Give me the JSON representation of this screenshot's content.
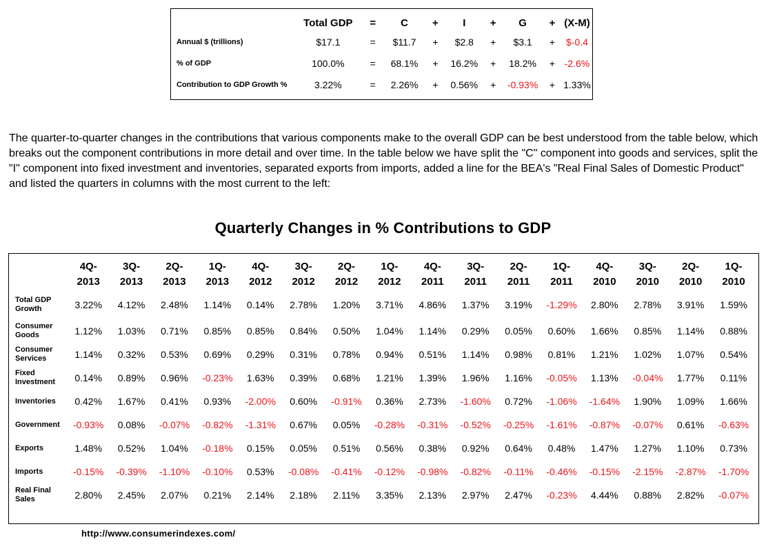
{
  "summary": {
    "header": [
      "",
      "Total GDP",
      "=",
      "C",
      "+",
      "I",
      "+",
      "G",
      "+",
      "(X-M)"
    ],
    "rows": [
      {
        "label": "Annual $ (trillions)",
        "cells": [
          "$17.1",
          "=",
          "$11.7",
          "+",
          "$2.8",
          "+",
          "$3.1",
          "+",
          "$-0.4"
        ]
      },
      {
        "label": "% of GDP",
        "cells": [
          "100.0%",
          "=",
          "68.1%",
          "+",
          "16.2%",
          "+",
          "18.2%",
          "+",
          "-2.6%"
        ]
      },
      {
        "label": "Contribution to GDP Growth %",
        "cells": [
          "3.22%",
          "=",
          "2.26%",
          "+",
          "0.56%",
          "+",
          "-0.93%",
          "+",
          "1.33%"
        ]
      }
    ]
  },
  "intro": "The quarter-to-quarter changes in the contributions that various components make to the overall GDP can be best understood from the table below, which breaks out the component contributions in more detail and over time. In the table below we have split the \"C\" component into goods and services, split the \"I\" component into fixed investment and inventories, separated exports from imports, added a line for the BEA's \"Real Final Sales of Domestic Product\" and listed the quarters in columns with the most current to the left:",
  "quarterly": {
    "title": "Quarterly Changes in % Contributions to GDP",
    "columns": [
      [
        "4Q-",
        "2013"
      ],
      [
        "3Q-",
        "2013"
      ],
      [
        "2Q-",
        "2013"
      ],
      [
        "1Q-",
        "2013"
      ],
      [
        "4Q-",
        "2012"
      ],
      [
        "3Q-",
        "2012"
      ],
      [
        "2Q-",
        "2012"
      ],
      [
        "1Q-",
        "2012"
      ],
      [
        "4Q-",
        "2011"
      ],
      [
        "3Q-",
        "2011"
      ],
      [
        "2Q-",
        "2011"
      ],
      [
        "1Q-",
        "2011"
      ],
      [
        "4Q-",
        "2010"
      ],
      [
        "3Q-",
        "2010"
      ],
      [
        "2Q-",
        "2010"
      ],
      [
        "1Q-",
        "2010"
      ]
    ],
    "rows": [
      {
        "label": [
          "Total GDP",
          "Growth"
        ],
        "values": [
          "3.22%",
          "4.12%",
          "2.48%",
          "1.14%",
          "0.14%",
          "2.78%",
          "1.20%",
          "3.71%",
          "4.86%",
          "1.37%",
          "3.19%",
          "-1.29%",
          "2.80%",
          "2.78%",
          "3.91%",
          "1.59%"
        ]
      },
      {
        "label": [
          "Consumer",
          "Goods"
        ],
        "values": [
          "1.12%",
          "1.03%",
          "0.71%",
          "0.85%",
          "0.85%",
          "0.84%",
          "0.50%",
          "1.04%",
          "1.14%",
          "0.29%",
          "0.05%",
          "0.60%",
          "1.66%",
          "0.85%",
          "1.14%",
          "0.88%"
        ]
      },
      {
        "label": [
          "Consumer",
          "Services"
        ],
        "values": [
          "1.14%",
          "0.32%",
          "0.53%",
          "0.69%",
          "0.29%",
          "0.31%",
          "0.78%",
          "0.94%",
          "0.51%",
          "1.14%",
          "0.98%",
          "0.81%",
          "1.21%",
          "1.02%",
          "1.07%",
          "0.54%"
        ]
      },
      {
        "label": [
          "Fixed",
          "Investment"
        ],
        "values": [
          "0.14%",
          "0.89%",
          "0.96%",
          "-0.23%",
          "1.63%",
          "0.39%",
          "0.68%",
          "1.21%",
          "1.39%",
          "1.96%",
          "1.16%",
          "-0.05%",
          "1.13%",
          "-0.04%",
          "1.77%",
          "0.11%"
        ]
      },
      {
        "label": [
          "Inventories"
        ],
        "values": [
          "0.42%",
          "1.67%",
          "0.41%",
          "0.93%",
          "-2.00%",
          "0.60%",
          "-0.91%",
          "0.36%",
          "2.73%",
          "-1.60%",
          "0.72%",
          "-1.06%",
          "-1.64%",
          "1.90%",
          "1.09%",
          "1.66%"
        ]
      },
      {
        "label": [
          "Government"
        ],
        "values": [
          "-0.93%",
          "0.08%",
          "-0.07%",
          "-0.82%",
          "-1.31%",
          "0.67%",
          "0.05%",
          "-0.28%",
          "-0.31%",
          "-0.52%",
          "-0.25%",
          "-1.61%",
          "-0.87%",
          "-0.07%",
          "0.61%",
          "-0.63%"
        ]
      },
      {
        "label": [
          "Exports"
        ],
        "values": [
          "1.48%",
          "0.52%",
          "1.04%",
          "-0.18%",
          "0.15%",
          "0.05%",
          "0.51%",
          "0.56%",
          "0.38%",
          "0.92%",
          "0.64%",
          "0.48%",
          "1.47%",
          "1.27%",
          "1.10%",
          "0.73%"
        ]
      },
      {
        "label": [
          "Imports"
        ],
        "values": [
          "-0.15%",
          "-0.39%",
          "-1.10%",
          "-0.10%",
          "0.53%",
          "-0.08%",
          "-0.41%",
          "-0.12%",
          "-0.98%",
          "-0.82%",
          "-0.11%",
          "-0.46%",
          "-0.15%",
          "-2.15%",
          "-2.87%",
          "-1.70%"
        ]
      },
      {
        "label": [
          "Real Final",
          "Sales"
        ],
        "values": [
          "2.80%",
          "2.45%",
          "2.07%",
          "0.21%",
          "2.14%",
          "2.18%",
          "2.11%",
          "3.35%",
          "2.13%",
          "2.97%",
          "2.47%",
          "-0.23%",
          "4.44%",
          "0.88%",
          "2.82%",
          "-0.07%"
        ]
      }
    ]
  },
  "url": "http://www.consumerindexes.com/",
  "colors": {
    "negative": "#e8151b",
    "text": "#000000",
    "background": "#ffffff"
  }
}
